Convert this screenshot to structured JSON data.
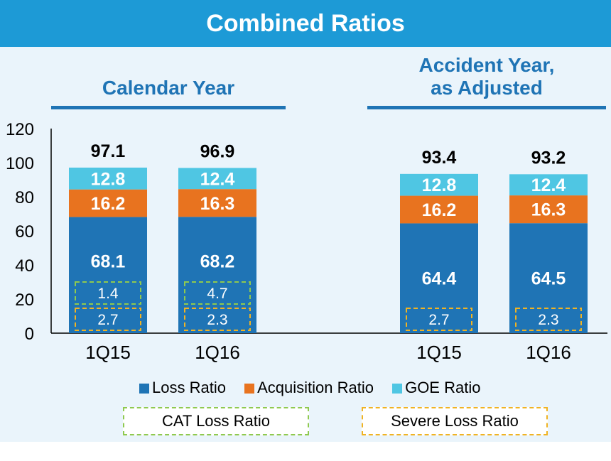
{
  "title": "Combined Ratios",
  "headers": {
    "calendar": "Calendar Year",
    "accident_line1": "Accident Year,",
    "accident_line2": "as Adjusted"
  },
  "colors": {
    "loss": "#1f74b5",
    "acquisition": "#e8731f",
    "goe": "#4fc6e3",
    "cat_border": "#8fc94f",
    "severe_border": "#f0b323",
    "banner": "#1d9ad6",
    "panel": "#eaf4fb"
  },
  "legend": {
    "loss": "Loss Ratio",
    "acquisition": "Acquisition Ratio",
    "goe": "GOE Ratio",
    "cat": "CAT Loss Ratio",
    "severe": "Severe Loss Ratio"
  },
  "chart_data": {
    "type": "bar",
    "stacked": true,
    "ylim": [
      0,
      120
    ],
    "yticks": [
      0,
      20,
      40,
      60,
      80,
      100,
      120
    ],
    "categories": [
      "1Q15",
      "1Q16",
      "1Q15",
      "1Q16"
    ],
    "groups": [
      "Calendar Year",
      "Calendar Year",
      "Accident Year, as Adjusted",
      "Accident Year, as Adjusted"
    ],
    "series": [
      {
        "name": "Loss Ratio",
        "values": [
          68.1,
          68.2,
          64.4,
          64.5
        ]
      },
      {
        "name": "Acquisition Ratio",
        "values": [
          16.2,
          16.3,
          16.2,
          16.3
        ]
      },
      {
        "name": "GOE Ratio",
        "values": [
          12.8,
          12.4,
          12.8,
          12.4
        ]
      }
    ],
    "totals": [
      "97.1",
      "96.9",
      "93.4",
      "93.2"
    ],
    "cat_loss_ratio": [
      "1.4",
      "4.7",
      null,
      null
    ],
    "severe_loss_ratio": [
      "2.7",
      "2.3",
      "2.7",
      "2.3"
    ],
    "legend_position": "bottom"
  }
}
